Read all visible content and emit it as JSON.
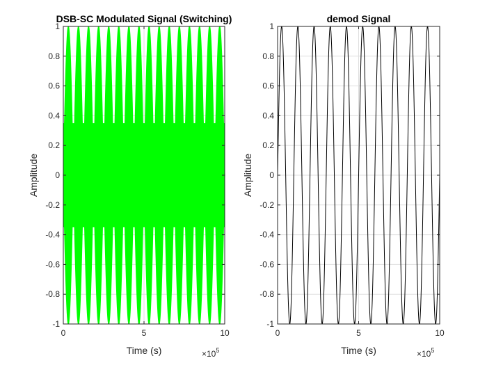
{
  "chart_data": [
    {
      "type": "line",
      "title": "DSB-SC Modulated Signal (Switching)",
      "xlabel": "Time (s)",
      "ylabel": "Amplitude",
      "xlim": [
        0,
        10
      ],
      "ylim": [
        -1,
        1
      ],
      "x_multiplier_label": {
        "base": "×10",
        "exponent": "5"
      },
      "xticks": [
        "0",
        "5",
        "10"
      ],
      "yticks": [
        "-1",
        "-0.8",
        "-0.6",
        "-0.4",
        "-0.2",
        "0",
        "0.2",
        "0.4",
        "0.6",
        "0.8",
        "1"
      ],
      "grid": true,
      "series": [
        {
          "color": "#00ff00",
          "fill": true,
          "envelope_cycles": 16,
          "amplitude": 1
        }
      ]
    },
    {
      "type": "line",
      "title": "demod Signal",
      "xlabel": "Time (s)",
      "ylabel": "Amplitude",
      "xlim": [
        0,
        10
      ],
      "ylim": [
        -1,
        1
      ],
      "x_multiplier_label": {
        "base": "×10",
        "exponent": "5"
      },
      "xticks": [
        "0",
        "5",
        "10"
      ],
      "yticks": [
        "-1",
        "-0.8",
        "-0.6",
        "-0.4",
        "-0.2",
        "0",
        "0.2",
        "0.4",
        "0.6",
        "0.8",
        "1"
      ],
      "grid": true,
      "series": [
        {
          "color": "#000000",
          "cycles": 10,
          "amplitude": 1,
          "phase": "sine-from-zero"
        }
      ]
    }
  ]
}
